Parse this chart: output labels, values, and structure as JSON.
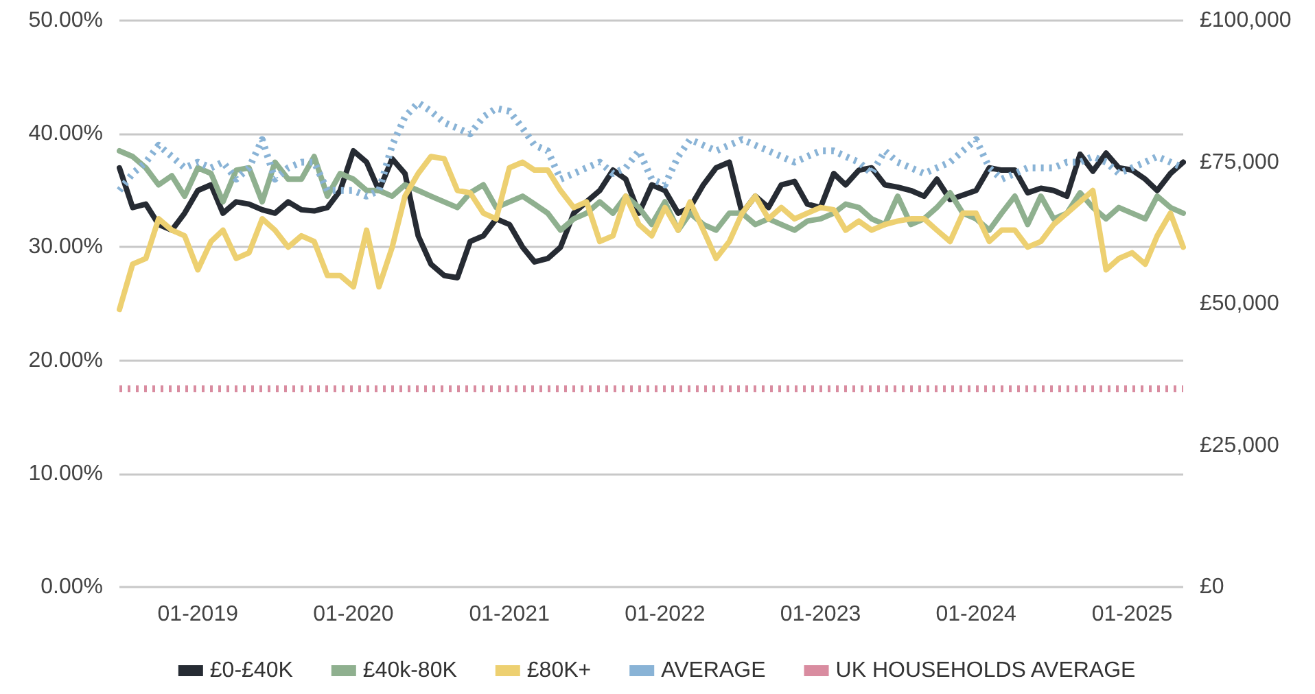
{
  "chart_data": {
    "type": "line",
    "x": [
      "2018-07",
      "2018-08",
      "2018-09",
      "2018-10",
      "2018-11",
      "2018-12",
      "2019-01",
      "2019-02",
      "2019-03",
      "2019-04",
      "2019-05",
      "2019-06",
      "2019-07",
      "2019-08",
      "2019-09",
      "2019-10",
      "2019-11",
      "2019-12",
      "2020-01",
      "2020-02",
      "2020-03",
      "2020-04",
      "2020-05",
      "2020-06",
      "2020-07",
      "2020-08",
      "2020-09",
      "2020-10",
      "2020-11",
      "2020-12",
      "2021-01",
      "2021-02",
      "2021-03",
      "2021-04",
      "2021-05",
      "2021-06",
      "2021-07",
      "2021-08",
      "2021-09",
      "2021-10",
      "2021-11",
      "2021-12",
      "2022-01",
      "2022-02",
      "2022-03",
      "2022-04",
      "2022-05",
      "2022-06",
      "2022-07",
      "2022-08",
      "2022-09",
      "2022-10",
      "2022-11",
      "2022-12",
      "2023-01",
      "2023-02",
      "2023-03",
      "2023-04",
      "2023-05",
      "2023-06",
      "2023-07",
      "2023-08",
      "2023-09",
      "2023-10",
      "2023-11",
      "2023-12",
      "2024-01",
      "2024-02",
      "2024-03",
      "2024-04",
      "2024-05",
      "2024-06",
      "2024-07",
      "2024-08",
      "2024-09",
      "2024-10",
      "2024-11",
      "2024-12",
      "2025-01",
      "2025-02",
      "2025-03",
      "2025-04",
      "2025-05"
    ],
    "series": [
      {
        "name": "£0-£40K",
        "color": "#262b33",
        "line_style": "solid",
        "values": [
          37,
          33.5,
          33.8,
          32,
          31.5,
          33,
          35,
          35.5,
          33,
          34,
          33.8,
          33.3,
          33,
          34,
          33.3,
          33.2,
          33.5,
          35,
          38.5,
          37.5,
          35,
          37.8,
          36.5,
          31,
          28.5,
          27.5,
          27.3,
          30.5,
          31,
          32.5,
          32,
          30,
          28.7,
          29,
          30,
          33,
          34,
          35,
          36.8,
          36,
          33,
          35.5,
          35,
          33,
          33.5,
          35.5,
          37,
          37.5,
          33,
          34.5,
          33.5,
          35.5,
          35.8,
          33.8,
          33.5,
          36.5,
          35.5,
          36.8,
          37,
          35.5,
          35.3,
          35,
          34.5,
          36,
          34.2,
          34.6,
          35,
          37,
          36.8,
          36.8,
          34.8,
          35.2,
          35,
          34.5,
          38.2,
          36.7,
          38.3,
          37,
          36.8,
          36,
          35,
          36.5,
          37.5
        ]
      },
      {
        "name": "£40k-80K",
        "color": "#8fb08f",
        "line_style": "solid",
        "values": [
          38.5,
          38,
          37,
          35.5,
          36.3,
          34.5,
          37,
          36.5,
          34,
          36.8,
          37,
          34,
          37.5,
          36,
          36,
          38,
          34.5,
          36.5,
          36,
          35,
          35,
          34.5,
          35.5,
          35,
          34.5,
          34,
          33.5,
          34.8,
          35.5,
          33.5,
          34,
          34.5,
          33.8,
          33,
          31.5,
          32.5,
          33,
          34,
          33,
          34.5,
          33.5,
          32,
          34,
          31.5,
          33,
          32,
          31.5,
          33,
          33,
          32,
          32.5,
          32,
          31.5,
          32.3,
          32.5,
          33,
          33.8,
          33.5,
          32.5,
          32,
          34.5,
          32,
          32.5,
          33.5,
          34.8,
          33,
          32.5,
          31.5,
          33,
          34.5,
          32,
          34.5,
          32.5,
          33,
          34.8,
          33.5,
          32.5,
          33.5,
          33,
          32.5,
          34.5,
          33.5,
          33
        ]
      },
      {
        "name": "£80K+",
        "color": "#edd071",
        "line_style": "solid",
        "values": [
          24.5,
          28.5,
          29,
          32.5,
          31.5,
          31,
          28,
          30.5,
          31.5,
          29,
          29.5,
          32.5,
          31.5,
          30,
          31,
          30.5,
          27.5,
          27.5,
          26.5,
          31.5,
          26.5,
          30,
          34.5,
          36.5,
          38,
          37.8,
          35,
          34.8,
          33,
          32.5,
          37,
          37.5,
          36.8,
          36.8,
          35,
          33.5,
          34,
          30.5,
          31,
          34.5,
          32,
          31,
          33.5,
          31.5,
          34,
          31.5,
          29,
          30.5,
          33,
          34.5,
          32.5,
          33.5,
          32.5,
          33,
          33.5,
          33.3,
          31.5,
          32.3,
          31.5,
          32,
          32.3,
          32.5,
          32.5,
          31.5,
          30.5,
          33,
          33,
          30.5,
          31.5,
          31.5,
          30,
          30.5,
          32,
          33,
          34,
          35,
          28,
          29,
          29.5,
          28.5,
          31,
          33,
          30
        ]
      },
      {
        "name": "AVERAGE",
        "color": "#89b3d6",
        "axis": "y2",
        "line_style": "dotted",
        "values": [
          70000,
          73000,
          75000,
          78000,
          76000,
          74000,
          75000,
          74000,
          75000,
          72000,
          74000,
          79000,
          72000,
          74000,
          75000,
          75000,
          70000,
          70000,
          70000,
          69000,
          70000,
          78000,
          83000,
          85500,
          84000,
          82000,
          81000,
          80000,
          83000,
          84500,
          84000,
          81000,
          78000,
          77000,
          72000,
          73000,
          74000,
          75000,
          73000,
          74000,
          77000,
          72000,
          71000,
          76000,
          79000,
          78000,
          77000,
          78000,
          79000,
          78000,
          77000,
          76000,
          75000,
          76000,
          77000,
          77000,
          76000,
          75000,
          73000,
          77000,
          75000,
          74000,
          73000,
          74000,
          75000,
          77000,
          79000,
          74000,
          72000,
          73000,
          74000,
          74000,
          74000,
          75000,
          75000,
          76000,
          75000,
          73000,
          74000,
          75000,
          76000,
          75000,
          74000
        ]
      },
      {
        "name": "UK HOUSEHOLDS AVERAGE",
        "color": "#d98ca0",
        "axis": "y2",
        "line_style": "dotted",
        "x": [
          "2018-07",
          "2025-05"
        ],
        "values": [
          35000,
          35000
        ]
      }
    ],
    "xlim": [
      "2018-07",
      "2025-05"
    ],
    "xticks": [
      {
        "value": "2019-01",
        "label": "01-2019"
      },
      {
        "value": "2020-01",
        "label": "01-2020"
      },
      {
        "value": "2021-01",
        "label": "01-2021"
      },
      {
        "value": "2022-01",
        "label": "01-2022"
      },
      {
        "value": "2023-01",
        "label": "01-2023"
      },
      {
        "value": "2024-01",
        "label": "01-2024"
      },
      {
        "value": "2025-01",
        "label": "01-2025"
      }
    ],
    "ylim": [
      0,
      50
    ],
    "yticks": [
      {
        "value": 0,
        "label": "0.00%"
      },
      {
        "value": 10,
        "label": "10.00%"
      },
      {
        "value": 20,
        "label": "20.00%"
      },
      {
        "value": 30,
        "label": "30.00%"
      },
      {
        "value": 40,
        "label": "40.00%"
      },
      {
        "value": 50,
        "label": "50.00%"
      }
    ],
    "y2lim": [
      0,
      100000
    ],
    "y2ticks": [
      {
        "value": 0,
        "label": "£0"
      },
      {
        "value": 25000,
        "label": "£25,000"
      },
      {
        "value": 50000,
        "label": "£50,000"
      },
      {
        "value": 75000,
        "label": "£75,000"
      },
      {
        "value": 100000,
        "label": "£100,000"
      }
    ],
    "grid": "y",
    "legend": "bottom",
    "marker": "none"
  }
}
